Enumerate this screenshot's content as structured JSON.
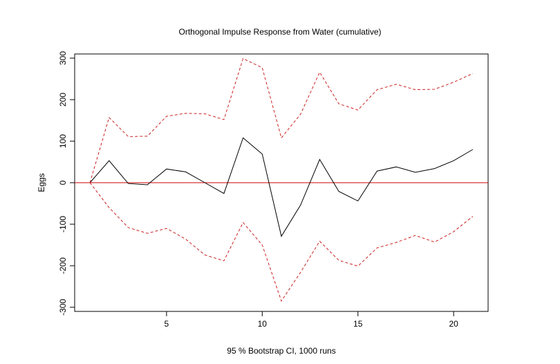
{
  "chart_data": {
    "type": "line",
    "title": "Orthogonal Impulse Response from Water (cumulative)",
    "xlabel": "95 % Bootstrap CI,  1000 runs",
    "ylabel": "Eggs",
    "xlim": [
      0.2,
      21.8
    ],
    "ylim": [
      -310,
      310
    ],
    "xticks": [
      5,
      10,
      15,
      20
    ],
    "yticks": [
      -300,
      -200,
      -100,
      0,
      100,
      200,
      300
    ],
    "x": [
      1,
      2,
      3,
      4,
      5,
      6,
      7,
      8,
      9,
      10,
      11,
      12,
      13,
      14,
      15,
      16,
      17,
      18,
      19,
      20,
      21
    ],
    "series": [
      {
        "values": [
          0,
          53,
          -2,
          -5,
          33,
          26,
          0,
          -26,
          108,
          69,
          -129,
          -54,
          56,
          -21,
          -44,
          28,
          38,
          25,
          34,
          53,
          80
        ],
        "color": "#000000",
        "dash": "solid"
      },
      {
        "values": [
          0,
          157,
          111,
          112,
          160,
          167,
          166,
          152,
          299,
          277,
          108,
          165,
          266,
          190,
          175,
          224,
          237,
          224,
          225,
          242,
          263
        ],
        "color": "#cc2222",
        "dash": "dashed"
      },
      {
        "values": [
          0,
          -60,
          -108,
          -122,
          -110,
          -136,
          -174,
          -188,
          -96,
          -150,
          -285,
          -216,
          -141,
          -187,
          -201,
          -157,
          -144,
          -127,
          -143,
          -118,
          -81
        ],
        "color": "#cc2222",
        "dash": "dashed"
      }
    ],
    "reference_line": {
      "y": 0,
      "color": "#cc0000"
    },
    "grid": false,
    "legend": "none"
  }
}
